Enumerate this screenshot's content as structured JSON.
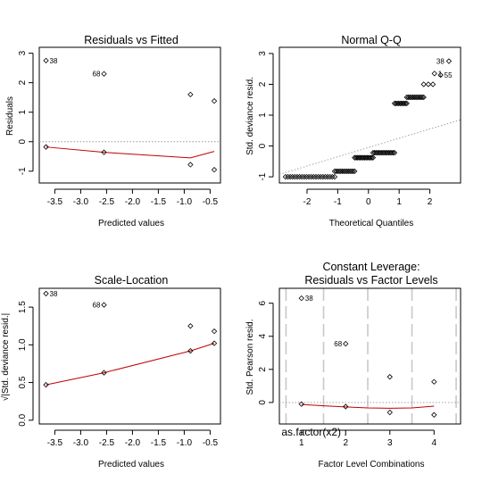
{
  "chart_data": [
    {
      "type": "scatter",
      "title": "Residuals vs Fitted",
      "xlabel": "Predicted values",
      "ylabel": "Residuals",
      "xlim": [
        -3.8,
        -0.3
      ],
      "ylim": [
        -1.4,
        3.2
      ],
      "xticks": [
        -3.5,
        -3.0,
        -2.5,
        -2.0,
        -1.5,
        -1.0,
        -0.5
      ],
      "xticklabels": [
        "-3.5",
        "-3.0",
        "-2.5",
        "-2.0",
        "-1.5",
        "-1.0",
        "-0.5"
      ],
      "yticks": [
        -1,
        0,
        1,
        2,
        3
      ],
      "yticklabels": [
        "-1",
        "0",
        "1",
        "2",
        "3"
      ],
      "points": [
        {
          "x": -3.67,
          "y": 2.75
        },
        {
          "x": -3.67,
          "y": -0.18
        },
        {
          "x": -2.55,
          "y": 2.3
        },
        {
          "x": -2.55,
          "y": -0.36
        },
        {
          "x": -0.88,
          "y": 1.6
        },
        {
          "x": -0.88,
          "y": -0.78
        },
        {
          "x": -0.42,
          "y": 1.38
        },
        {
          "x": -0.42,
          "y": -0.95
        }
      ],
      "smooth": [
        [
          -3.67,
          -0.18
        ],
        [
          -2.55,
          -0.36
        ],
        [
          -0.88,
          -0.55
        ],
        [
          -0.42,
          -0.33
        ]
      ],
      "hline": 0,
      "annotations": [
        {
          "text": "38",
          "x": -3.67,
          "y": 2.75
        },
        {
          "text": "68",
          "x": -2.55,
          "y": 2.3
        }
      ]
    },
    {
      "type": "scatter",
      "title": "Normal Q-Q",
      "xlabel": "Theoretical Quantiles",
      "ylabel": "Std. deviance resid.",
      "xlim": [
        -2.9,
        3.0
      ],
      "ylim": [
        -1.2,
        3.2
      ],
      "xticks": [
        -2,
        -1,
        0,
        1,
        2
      ],
      "xticklabels": [
        "-2",
        "-1",
        "0",
        "1",
        "2"
      ],
      "yticks": [
        -1,
        0,
        1,
        2,
        3
      ],
      "yticklabels": [
        "-1",
        "0",
        "1",
        "2",
        "3"
      ],
      "point_groups": [
        {
          "x_from": -2.7,
          "x_to": -1.1,
          "y": -1.0,
          "n": 22
        },
        {
          "x_from": -1.1,
          "x_to": -0.45,
          "y": -0.82,
          "n": 14
        },
        {
          "x_from": -0.45,
          "x_to": 0.15,
          "y": -0.38,
          "n": 14
        },
        {
          "x_from": 0.15,
          "x_to": 0.85,
          "y": -0.22,
          "n": 16
        },
        {
          "x_from": 0.85,
          "x_to": 1.25,
          "y": 1.38,
          "n": 10
        },
        {
          "x_from": 1.25,
          "x_to": 1.8,
          "y": 1.58,
          "n": 12
        },
        {
          "x_from": 1.8,
          "x_to": 2.1,
          "y": 2.0,
          "n": 3
        }
      ],
      "extra_points": [
        {
          "x": 2.15,
          "y": 2.35
        },
        {
          "x": 2.35,
          "y": 2.3
        },
        {
          "x": 2.62,
          "y": 2.75
        }
      ],
      "ref_line": {
        "intercept": -0.05,
        "slope": 0.3
      },
      "annotations": [
        {
          "text": "38",
          "x": 2.62,
          "y": 2.75
        },
        {
          "text": "1",
          "x": 2.15,
          "y": 2.35
        },
        {
          "text": "55",
          "x": 2.35,
          "y": 2.3
        }
      ]
    },
    {
      "type": "scatter",
      "title": "Scale-Location",
      "xlabel": "Predicted values",
      "ylabel": "√|Std. deviance resid.|",
      "xlim": [
        -3.8,
        -0.3
      ],
      "ylim": [
        -0.05,
        1.75
      ],
      "xticks": [
        -3.5,
        -3.0,
        -2.5,
        -2.0,
        -1.5,
        -1.0,
        -0.5
      ],
      "xticklabels": [
        "-3.5",
        "-3.0",
        "-2.5",
        "-2.0",
        "-1.5",
        "-1.0",
        "-0.5"
      ],
      "yticks": [
        0.0,
        0.5,
        1.0,
        1.5
      ],
      "yticklabels": [
        "0.0",
        "0.5",
        "1.0",
        "1.5"
      ],
      "points": [
        {
          "x": -3.67,
          "y": 1.68
        },
        {
          "x": -3.67,
          "y": 0.47
        },
        {
          "x": -2.55,
          "y": 1.53
        },
        {
          "x": -2.55,
          "y": 0.63
        },
        {
          "x": -0.88,
          "y": 1.25
        },
        {
          "x": -0.88,
          "y": 0.92
        },
        {
          "x": -0.42,
          "y": 1.18
        },
        {
          "x": -0.42,
          "y": 1.02
        }
      ],
      "smooth": [
        [
          -3.67,
          0.47
        ],
        [
          -2.55,
          0.63
        ],
        [
          -0.88,
          0.92
        ],
        [
          -0.42,
          1.02
        ]
      ],
      "annotations": [
        {
          "text": "38",
          "x": -3.67,
          "y": 1.68
        },
        {
          "text": "68",
          "x": -2.55,
          "y": 1.53
        }
      ]
    },
    {
      "type": "scatter",
      "title": "Constant Leverage:",
      "subtitle": "Residuals vs Factor Levels",
      "xlabel": "Factor Level Combinations",
      "ylabel": "Std. Pearson resid.",
      "factor_label": "as.factor(x2) :",
      "xlim": [
        0.5,
        4.6
      ],
      "ylim": [
        -1.3,
        6.9
      ],
      "xticks": [
        1,
        2,
        3,
        4
      ],
      "xticklabels": [
        "1",
        "2",
        "3",
        "4"
      ],
      "yticks": [
        0,
        2,
        4,
        6
      ],
      "yticklabels": [
        "0",
        "2",
        "4",
        "6"
      ],
      "vlines": [
        0.65,
        1.5,
        2.5,
        3.5,
        4.5
      ],
      "points": [
        {
          "x": 1.0,
          "y": 6.3
        },
        {
          "x": 1.0,
          "y": -0.1
        },
        {
          "x": 2.0,
          "y": 3.55
        },
        {
          "x": 2.0,
          "y": -0.25
        },
        {
          "x": 3.0,
          "y": 1.55
        },
        {
          "x": 3.0,
          "y": -0.6
        },
        {
          "x": 4.0,
          "y": 1.25
        },
        {
          "x": 4.0,
          "y": -0.75
        }
      ],
      "smooth": [
        [
          1.0,
          -0.12
        ],
        [
          1.5,
          -0.2
        ],
        [
          2.0,
          -0.27
        ],
        [
          2.5,
          -0.33
        ],
        [
          3.0,
          -0.35
        ],
        [
          3.5,
          -0.33
        ],
        [
          4.0,
          -0.22
        ]
      ],
      "hline": 0,
      "annotations": [
        {
          "text": "38",
          "x": 1.0,
          "y": 6.3
        },
        {
          "text": "68",
          "x": 2.0,
          "y": 3.55
        }
      ]
    }
  ]
}
